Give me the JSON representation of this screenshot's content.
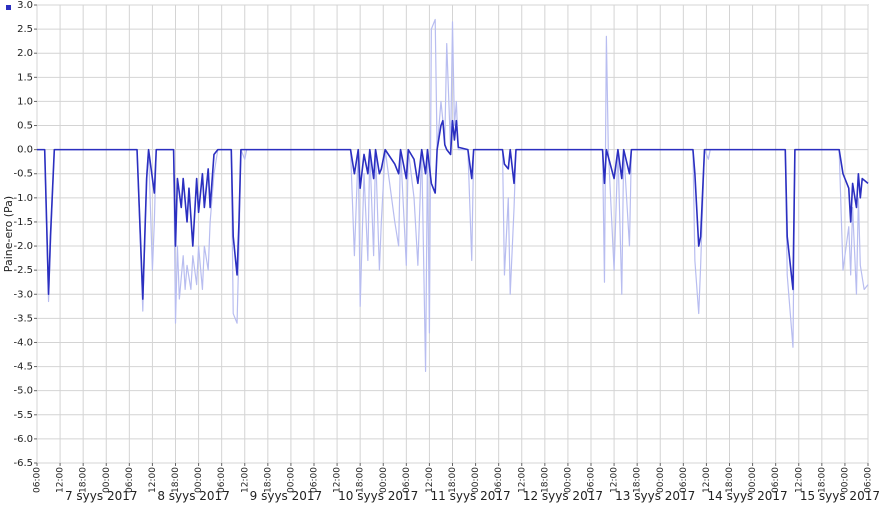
{
  "chart_data": {
    "type": "line",
    "y_label": "Paine-ero (Pa)",
    "ylim": [
      -6.5,
      3.0
    ],
    "yticks": [
      {
        "value": 3,
        "label": "3.0"
      },
      2.5,
      {
        "value": 2,
        "label": "2.0"
      },
      1.5,
      {
        "value": 1,
        "label": "1.0"
      },
      0.5,
      {
        "value": 0,
        "label": "0.0"
      },
      -0.5,
      {
        "value": -1,
        "label": "-1.0"
      },
      -1.5,
      {
        "value": -2,
        "label": "-2.0"
      },
      -2.5,
      {
        "value": -3,
        "label": "-3.0"
      },
      -3.5,
      {
        "value": -4,
        "label": "-4.0"
      },
      -4.5,
      {
        "value": -5,
        "label": "-5.0"
      },
      -5.5,
      {
        "value": -6,
        "label": "-6.0"
      },
      -6.5
    ],
    "xlim": [
      "2017-09-07 06:00",
      "2017-09-16 06:00"
    ],
    "xticks": [
      {
        "value": "2017-09-07 06:00",
        "label": "06:00"
      },
      {
        "value": "2017-09-07 12:00",
        "label": "12:00"
      },
      {
        "value": "2017-09-07 18:00",
        "label": "18:00"
      },
      {
        "value": "2017-09-08 00:00",
        "label": "00:00"
      },
      {
        "value": "2017-09-08 06:00",
        "label": "06:00"
      },
      {
        "value": "2017-09-08 12:00",
        "label": "12:00"
      },
      {
        "value": "2017-09-08 18:00",
        "label": "18:00"
      },
      {
        "value": "2017-09-09 00:00",
        "label": "00:00"
      },
      {
        "value": "2017-09-09 06:00",
        "label": "06:00"
      },
      {
        "value": "2017-09-09 12:00",
        "label": "12:00"
      },
      {
        "value": "2017-09-09 18:00",
        "label": "18:00"
      },
      {
        "value": "2017-09-10 00:00",
        "label": "00:00"
      },
      {
        "value": "2017-09-10 06:00",
        "label": "06:00"
      },
      {
        "value": "2017-09-10 12:00",
        "label": "12:00"
      },
      {
        "value": "2017-09-10 18:00",
        "label": "18:00"
      },
      {
        "value": "2017-09-11 00:00",
        "label": "00:00"
      },
      {
        "value": "2017-09-11 06:00",
        "label": "06:00"
      },
      {
        "value": "2017-09-11 12:00",
        "label": "12:00"
      },
      {
        "value": "2017-09-11 18:00",
        "label": "18:00"
      },
      {
        "value": "2017-09-12 00:00",
        "label": "00:00"
      },
      {
        "value": "2017-09-12 06:00",
        "label": "06:00"
      },
      {
        "value": "2017-09-12 12:00",
        "label": "12:00"
      },
      {
        "value": "2017-09-12 18:00",
        "label": "18:00"
      },
      {
        "value": "2017-09-13 00:00",
        "label": "00:00"
      },
      {
        "value": "2017-09-13 06:00",
        "label": "06:00"
      },
      {
        "value": "2017-09-13 12:00",
        "label": "12:00"
      },
      {
        "value": "2017-09-13 18:00",
        "label": "18:00"
      },
      {
        "value": "2017-09-14 00:00",
        "label": "00:00"
      },
      {
        "value": "2017-09-14 06:00",
        "label": "06:00"
      },
      {
        "value": "2017-09-14 12:00",
        "label": "12:00"
      },
      {
        "value": "2017-09-14 18:00",
        "label": "18:00"
      },
      {
        "value": "2017-09-15 00:00",
        "label": "00:00"
      },
      {
        "value": "2017-09-15 06:00",
        "label": "06:00"
      },
      {
        "value": "2017-09-15 12:00",
        "label": "12:00"
      },
      {
        "value": "2017-09-15 18:00",
        "label": "18:00"
      },
      {
        "value": "2017-09-16 00:00",
        "label": "00:00"
      },
      {
        "value": "2017-09-16 06:00",
        "label": "06:00"
      }
    ],
    "day_labels": [
      "7 syys 2017",
      "8 syys 2017",
      "9 syys 2017",
      "10 syys 2017",
      "11 syys 2017",
      "12 syys 2017",
      "13 syys 2017",
      "14 syys 2017",
      "15 syys 2017"
    ],
    "grid": true,
    "series": [
      {
        "color": "#b8bdf0",
        "x": [
          "2017-09-07 06:00",
          "2017-09-07 08:00",
          "2017-09-07 09:00",
          "2017-09-07 09:30",
          "2017-09-07 10:30",
          "2017-09-08 08:00",
          "2017-09-08 09:30",
          "2017-09-08 10:30",
          "2017-09-08 11:00",
          "2017-09-08 12:00",
          "2017-09-08 12:30",
          "2017-09-08 13:00",
          "2017-09-08 17:30",
          "2017-09-08 18:00",
          "2017-09-08 18:30",
          "2017-09-08 19:00",
          "2017-09-08 20:00",
          "2017-09-08 20:30",
          "2017-09-08 21:00",
          "2017-09-08 22:00",
          "2017-09-08 22:30",
          "2017-09-08 23:30",
          "2017-09-09 00:00",
          "2017-09-09 01:00",
          "2017-09-09 01:30",
          "2017-09-09 02:30",
          "2017-09-09 03:00",
          "2017-09-09 04:00",
          "2017-09-09 05:00",
          "2017-09-09 08:30",
          "2017-09-09 09:00",
          "2017-09-09 10:00",
          "2017-09-09 10:30",
          "2017-09-09 11:00",
          "2017-09-09 12:00",
          "2017-09-09 12:30",
          "2017-09-10 15:30",
          "2017-09-10 16:30",
          "2017-09-10 17:30",
          "2017-09-10 18:00",
          "2017-09-10 19:00",
          "2017-09-10 20:00",
          "2017-09-10 20:30",
          "2017-09-10 21:30",
          "2017-09-10 22:00",
          "2017-09-10 23:00",
          "2017-09-10 23:30",
          "2017-09-11 00:30",
          "2017-09-11 03:00",
          "2017-09-11 04:00",
          "2017-09-11 04:30",
          "2017-09-11 06:00",
          "2017-09-11 06:30",
          "2017-09-11 08:00",
          "2017-09-11 09:00",
          "2017-09-11 10:00",
          "2017-09-11 11:00",
          "2017-09-11 11:30",
          "2017-09-11 12:00",
          "2017-09-11 12:30",
          "2017-09-11 13:30",
          "2017-09-11 14:00",
          "2017-09-11 15:00",
          "2017-09-11 16:00",
          "2017-09-11 16:30",
          "2017-09-11 17:30",
          "2017-09-11 18:00",
          "2017-09-11 18:30",
          "2017-09-11 19:00",
          "2017-09-11 19:30",
          "2017-09-11 22:00",
          "2017-09-11 23:00",
          "2017-09-11 23:30",
          "2017-09-12 07:00",
          "2017-09-12 07:30",
          "2017-09-12 08:30",
          "2017-09-12 09:00",
          "2017-09-12 10:00",
          "2017-09-12 10:30",
          "2017-09-13 09:00",
          "2017-09-13 09:30",
          "2017-09-13 10:00",
          "2017-09-13 10:30",
          "2017-09-13 12:00",
          "2017-09-13 13:00",
          "2017-09-13 14:00",
          "2017-09-13 14:30",
          "2017-09-13 16:00",
          "2017-09-13 16:30",
          "2017-09-14 08:30",
          "2017-09-14 09:00",
          "2017-09-14 10:00",
          "2017-09-14 10:30",
          "2017-09-14 11:30",
          "2017-09-14 12:30",
          "2017-09-14 13:00",
          "2017-09-15 08:30",
          "2017-09-15 09:00",
          "2017-09-15 10:30",
          "2017-09-15 11:00",
          "2017-09-15 22:30",
          "2017-09-15 23:30",
          "2017-09-16 01:00",
          "2017-09-16 01:30",
          "2017-09-16 02:00",
          "2017-09-16 03:00",
          "2017-09-16 03:30",
          "2017-09-16 04:00",
          "2017-09-16 05:00",
          "2017-09-16 06:00"
        ],
        "values": [
          0,
          0,
          -3.15,
          -2.0,
          0,
          0,
          -3.35,
          -0.5,
          0,
          -2.5,
          -1.5,
          0,
          0,
          -3.6,
          -2.0,
          -3.1,
          -2.2,
          -2.9,
          -2.4,
          -2.9,
          -2.2,
          -2.8,
          -2.0,
          -2.9,
          -2.0,
          -2.5,
          -1.5,
          -0.5,
          0,
          0,
          -3.4,
          -3.6,
          -2.0,
          0,
          -0.2,
          0,
          0,
          -2.2,
          0,
          -3.25,
          -0.5,
          -2.3,
          0,
          -2.2,
          0,
          -2.5,
          -1.5,
          0,
          -1.5,
          -2.0,
          0,
          -2.4,
          0,
          -1.0,
          -2.4,
          0,
          -4.6,
          0,
          -3.8,
          2.5,
          2.7,
          0,
          1.0,
          0.2,
          2.2,
          0,
          2.65,
          0.5,
          1.0,
          0,
          0,
          -2.3,
          0,
          0,
          -2.6,
          -1.0,
          -3.0,
          -1.2,
          0,
          0,
          -2.75,
          2.35,
          0,
          -2.5,
          0,
          -3.0,
          0,
          -2.0,
          0,
          0,
          -2.3,
          -3.4,
          -2.4,
          0,
          -0.2,
          0,
          0,
          -2.6,
          -4.1,
          0,
          0,
          -2.5,
          -1.6,
          -2.6,
          -1.2,
          -3.0,
          -1.0,
          -2.4,
          -2.9,
          -2.8
        ]
      },
      {
        "color": "#2b2fc0",
        "x": [
          "2017-09-07 06:00",
          "2017-09-07 08:00",
          "2017-09-07 09:00",
          "2017-09-07 09:30",
          "2017-09-07 10:30",
          "2017-09-08 08:00",
          "2017-09-08 09:30",
          "2017-09-08 10:30",
          "2017-09-08 11:00",
          "2017-09-08 12:30",
          "2017-09-08 13:00",
          "2017-09-08 17:30",
          "2017-09-08 18:00",
          "2017-09-08 18:30",
          "2017-09-08 19:30",
          "2017-09-08 20:00",
          "2017-09-08 21:00",
          "2017-09-08 21:30",
          "2017-09-08 22:30",
          "2017-09-08 23:30",
          "2017-09-09 00:00",
          "2017-09-09 01:00",
          "2017-09-09 01:30",
          "2017-09-09 02:30",
          "2017-09-09 03:00",
          "2017-09-09 04:00",
          "2017-09-09 05:00",
          "2017-09-09 08:30",
          "2017-09-09 09:00",
          "2017-09-09 10:00",
          "2017-09-09 10:30",
          "2017-09-09 11:00",
          "2017-09-10 15:30",
          "2017-09-10 16:30",
          "2017-09-10 17:30",
          "2017-09-10 18:00",
          "2017-09-10 19:00",
          "2017-09-10 20:00",
          "2017-09-10 20:30",
          "2017-09-10 21:30",
          "2017-09-10 22:00",
          "2017-09-10 23:00",
          "2017-09-10 23:30",
          "2017-09-11 00:30",
          "2017-09-11 03:00",
          "2017-09-11 04:00",
          "2017-09-11 04:30",
          "2017-09-11 06:00",
          "2017-09-11 06:30",
          "2017-09-11 08:00",
          "2017-09-11 09:00",
          "2017-09-11 10:00",
          "2017-09-11 11:00",
          "2017-09-11 11:30",
          "2017-09-11 12:30",
          "2017-09-11 13:30",
          "2017-09-11 14:00",
          "2017-09-11 15:00",
          "2017-09-11 15:30",
          "2017-09-11 16:00",
          "2017-09-11 16:30",
          "2017-09-11 17:30",
          "2017-09-11 18:00",
          "2017-09-11 18:30",
          "2017-09-11 19:00",
          "2017-09-11 19:30",
          "2017-09-11 22:00",
          "2017-09-11 23:00",
          "2017-09-11 23:30",
          "2017-09-12 07:00",
          "2017-09-12 07:30",
          "2017-09-12 08:30",
          "2017-09-12 09:00",
          "2017-09-12 10:00",
          "2017-09-12 10:30",
          "2017-09-13 09:00",
          "2017-09-13 09:30",
          "2017-09-13 10:00",
          "2017-09-13 12:00",
          "2017-09-13 13:00",
          "2017-09-13 14:00",
          "2017-09-13 14:30",
          "2017-09-13 16:00",
          "2017-09-13 16:30",
          "2017-09-14 08:30",
          "2017-09-14 09:00",
          "2017-09-14 10:00",
          "2017-09-14 10:30",
          "2017-09-14 11:30",
          "2017-09-15 08:30",
          "2017-09-15 09:00",
          "2017-09-15 10:30",
          "2017-09-15 11:00",
          "2017-09-15 22:30",
          "2017-09-15 23:30",
          "2017-09-16 01:00",
          "2017-09-16 01:30",
          "2017-09-16 02:00",
          "2017-09-16 03:00",
          "2017-09-16 03:30",
          "2017-09-16 04:00",
          "2017-09-16 04:30",
          "2017-09-16 06:00"
        ],
        "values": [
          0,
          0,
          -3.0,
          -1.8,
          0,
          0,
          -3.1,
          -0.6,
          0,
          -0.9,
          0,
          0,
          -2.0,
          -0.6,
          -1.2,
          -0.6,
          -1.5,
          -0.8,
          -2.0,
          -0.6,
          -1.3,
          -0.5,
          -1.2,
          -0.4,
          -1.2,
          -0.1,
          0,
          0,
          -1.8,
          -2.6,
          -1.5,
          0,
          0,
          -0.5,
          0,
          -0.8,
          -0.1,
          -0.5,
          0,
          -0.6,
          0,
          -0.5,
          -0.4,
          0,
          -0.3,
          -0.5,
          0,
          -0.6,
          0,
          -0.2,
          -0.7,
          0,
          -0.5,
          0,
          -0.7,
          -0.9,
          0,
          0.5,
          0.6,
          0.1,
          0,
          -0.1,
          0.6,
          0.2,
          0.6,
          0.05,
          0,
          -0.6,
          0,
          0,
          -0.3,
          -0.4,
          0,
          -0.7,
          0,
          0,
          -0.7,
          0,
          -0.6,
          0,
          -0.6,
          0,
          -0.5,
          0,
          0,
          -0.5,
          -2.0,
          -1.8,
          0,
          0,
          -1.8,
          -2.9,
          0,
          0,
          -0.5,
          -0.8,
          -1.5,
          -0.7,
          -1.2,
          -0.5,
          -1.0,
          -0.6,
          -0.7
        ]
      }
    ]
  }
}
